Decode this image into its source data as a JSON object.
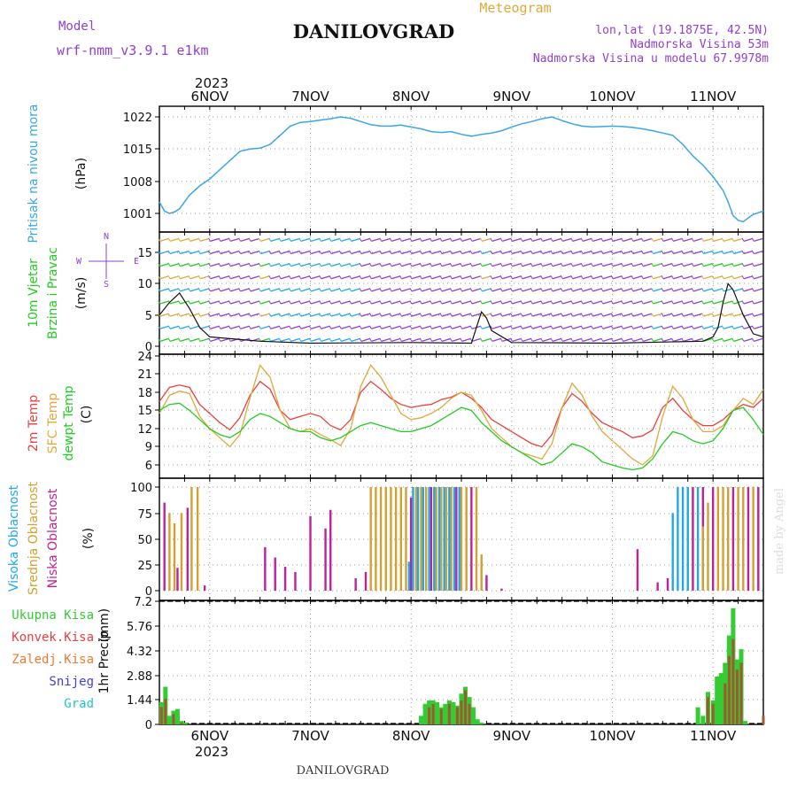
{
  "header": {
    "model_label": "Model",
    "model_value": "wrf-nmm_v3.9.1 e1km",
    "station": "DANILOVGRAD",
    "product": "Meteogram",
    "lonlat": "lon,lat (19.1875E, 42.5N)",
    "elevation": "Nadmorska Visina 53m",
    "model_elevation": "Nadmorska Visina u modelu 67.9978m",
    "footer": "DANILOVGRAD",
    "watermark": "made by Angel",
    "year": "2023"
  },
  "colors": {
    "pressure": "#3aa6e8",
    "temp2m": "#e8413c",
    "sfc": "#e0a83c",
    "dewpt": "#22cc22",
    "high_cloud": "#22a8e8",
    "mid_cloud": "#d4a030",
    "low_cloud": "#c0209a",
    "purple": "#9040d0",
    "precip_total": "#33cc33",
    "precip_conv": "#e84040",
    "precip_frz": "#f07830",
    "snow": "#4040e0",
    "grad": "#20c8c8"
  },
  "time_axis": {
    "day_labels": [
      "6NOV",
      "7NOV",
      "8NOV",
      "9NOV",
      "10NOV",
      "11NOV"
    ]
  },
  "wind_legend": [
    "N",
    "W",
    "E",
    "S"
  ],
  "chart_data": [
    {
      "id": "pressure",
      "type": "line",
      "axis_label": "Pritisak na nivou mora",
      "unit": "(hPa)",
      "yticks": [
        "1022",
        "1015",
        "1008",
        "1001"
      ],
      "ylim": [
        997,
        1024
      ],
      "x": [
        5.5,
        5.55,
        5.6,
        5.65,
        5.7,
        5.75,
        5.8,
        5.9,
        6.0,
        6.1,
        6.2,
        6.3,
        6.4,
        6.5,
        6.6,
        6.7,
        6.8,
        6.9,
        7.0,
        7.1,
        7.2,
        7.3,
        7.4,
        7.5,
        7.6,
        7.7,
        7.8,
        7.9,
        8.0,
        8.1,
        8.2,
        8.3,
        8.4,
        8.5,
        8.6,
        8.7,
        8.8,
        8.9,
        9.0,
        9.1,
        9.2,
        9.3,
        9.4,
        9.5,
        9.6,
        9.7,
        9.8,
        9.9,
        10.0,
        10.1,
        10.2,
        10.3,
        10.4,
        10.5,
        10.6,
        10.7,
        10.8,
        10.9,
        11.0,
        11.1,
        11.15,
        11.2,
        11.25,
        11.3,
        11.35,
        11.4,
        11.5
      ],
      "y": [
        1003.5,
        1001.5,
        1001.0,
        1001.3,
        1002.0,
        1003.5,
        1005.0,
        1007.0,
        1008.5,
        1010.5,
        1012.5,
        1014.5,
        1015.0,
        1015.2,
        1016.0,
        1018.0,
        1020.0,
        1020.8,
        1021.0,
        1021.3,
        1021.6,
        1022.0,
        1021.7,
        1021.0,
        1020.3,
        1020.0,
        1020.0,
        1020.2,
        1019.8,
        1019.4,
        1018.8,
        1018.6,
        1018.8,
        1018.2,
        1017.8,
        1018.2,
        1018.5,
        1019.0,
        1019.8,
        1020.5,
        1021.0,
        1021.6,
        1022.0,
        1021.2,
        1020.5,
        1020.0,
        1019.8,
        1019.9,
        1020.0,
        1019.9,
        1019.7,
        1019.4,
        1019.0,
        1018.5,
        1018.0,
        1016.0,
        1013.5,
        1011.5,
        1009.0,
        1006.0,
        1003.5,
        1000.5,
        999.5,
        999.2,
        1000.0,
        1000.8,
        1001.5
      ]
    },
    {
      "id": "wind",
      "type": "scatter",
      "axis_label_1": "10m Vjetar",
      "axis_label_2": "Brzina i Pravac",
      "unit": "(m/s)",
      "yticks": [
        "15",
        "10",
        "5",
        "0"
      ],
      "ylim": [
        -1,
        18
      ],
      "barb_rows_ms": [
        1,
        3,
        5,
        7,
        9,
        11,
        13,
        15,
        17
      ],
      "gust_line": {
        "x": [
          5.5,
          5.6,
          5.7,
          5.8,
          5.9,
          6.0,
          6.5,
          7.0,
          8.0,
          8.6,
          8.65,
          8.7,
          8.75,
          8.8,
          9.0,
          10.0,
          10.9,
          11.0,
          11.05,
          11.1,
          11.15,
          11.2,
          11.3,
          11.4,
          11.5
        ],
        "y": [
          5,
          7,
          8.5,
          6,
          3,
          1.5,
          0.8,
          0.5,
          0.6,
          0.5,
          3,
          5.5,
          4.5,
          2.5,
          0.6,
          0.5,
          0.8,
          1.5,
          3,
          7,
          10,
          9,
          5,
          2,
          1.5
        ]
      }
    },
    {
      "id": "temperature",
      "type": "line",
      "axis_label_1": "2m Temp",
      "axis_label_2": "SFC Temp",
      "axis_label_3": "dewpt Temp",
      "unit": "(C)",
      "yticks": [
        "24",
        "21",
        "18",
        "15",
        "12",
        "9",
        "6"
      ],
      "ylim": [
        4.5,
        24
      ],
      "x": [
        5.5,
        5.6,
        5.7,
        5.8,
        5.9,
        6.0,
        6.1,
        6.2,
        6.3,
        6.4,
        6.5,
        6.6,
        6.7,
        6.8,
        6.9,
        7.0,
        7.1,
        7.2,
        7.3,
        7.4,
        7.5,
        7.6,
        7.7,
        7.8,
        7.9,
        8.0,
        8.1,
        8.2,
        8.3,
        8.4,
        8.5,
        8.6,
        8.7,
        8.8,
        8.9,
        9.0,
        9.1,
        9.2,
        9.3,
        9.4,
        9.5,
        9.6,
        9.7,
        9.8,
        9.9,
        10.0,
        10.1,
        10.2,
        10.3,
        10.4,
        10.5,
        10.6,
        10.7,
        10.8,
        10.9,
        11.0,
        11.1,
        11.2,
        11.3,
        11.4,
        11.5
      ],
      "series": [
        {
          "name": "2m Temp",
          "color_key": "temp2m",
          "values": [
            16.5,
            18.8,
            19.2,
            18.8,
            16.0,
            14.5,
            13.0,
            11.8,
            13.8,
            17.5,
            19.8,
            18.5,
            15.0,
            13.5,
            14.0,
            14.5,
            14.0,
            12.5,
            11.8,
            13.5,
            18.0,
            19.8,
            18.5,
            17.0,
            16.0,
            15.5,
            15.8,
            16.0,
            16.8,
            17.2,
            18.0,
            17.0,
            15.5,
            13.5,
            12.5,
            11.5,
            10.5,
            9.5,
            9.0,
            11.0,
            15.5,
            17.8,
            16.5,
            14.5,
            13.0,
            12.2,
            11.5,
            10.5,
            10.8,
            11.8,
            15.5,
            17.0,
            15.0,
            13.5,
            12.5,
            12.5,
            13.5,
            15.0,
            16.0,
            15.5,
            17.0
          ]
        },
        {
          "name": "SFC Temp",
          "color_key": "sfc",
          "values": [
            14.5,
            17.5,
            18.2,
            17.8,
            14.0,
            12.0,
            10.5,
            9.0,
            11.0,
            17.0,
            22.5,
            20.5,
            15.0,
            12.0,
            11.5,
            12.0,
            11.0,
            10.2,
            9.2,
            12.0,
            19.0,
            22.5,
            20.5,
            17.5,
            14.5,
            13.5,
            13.8,
            14.5,
            15.5,
            17.0,
            18.0,
            17.5,
            15.0,
            12.0,
            10.5,
            9.0,
            8.0,
            7.5,
            7.0,
            9.5,
            15.5,
            19.5,
            17.5,
            14.0,
            11.5,
            10.0,
            8.5,
            7.0,
            6.0,
            7.5,
            14.0,
            19.0,
            17.0,
            13.5,
            11.5,
            11.5,
            12.5,
            15.0,
            17.0,
            16.0,
            18.5
          ]
        },
        {
          "name": "dewpt Temp",
          "color_key": "dewpt",
          "values": [
            15.0,
            16.0,
            16.2,
            15.0,
            13.5,
            12.0,
            11.0,
            10.5,
            11.5,
            13.5,
            14.5,
            14.0,
            13.0,
            12.0,
            11.5,
            11.5,
            10.5,
            10.0,
            10.5,
            11.5,
            12.5,
            13.0,
            12.5,
            12.0,
            11.5,
            11.5,
            12.0,
            12.5,
            13.5,
            14.5,
            15.5,
            15.0,
            13.0,
            11.5,
            10.0,
            9.0,
            8.0,
            7.0,
            6.0,
            6.5,
            8.0,
            9.5,
            9.0,
            8.0,
            6.5,
            6.0,
            5.5,
            5.2,
            5.5,
            7.0,
            9.5,
            11.5,
            11.0,
            10.0,
            9.5,
            10.0,
            12.0,
            15.0,
            15.5,
            13.5,
            11.0
          ]
        }
      ]
    },
    {
      "id": "clouds",
      "type": "bar",
      "axis_label_1": "Visoka Oblacnost",
      "axis_label_2": "Srednja Oblacnost",
      "axis_label_3": "Niska Oblacnost",
      "unit": "(%)",
      "yticks": [
        "100",
        "75",
        "50",
        "25",
        "0"
      ],
      "ylim": [
        0,
        100
      ],
      "series": [
        {
          "name": "Niska Oblacnost",
          "color_key": "low_cloud",
          "x": [
            5.55,
            5.68,
            5.78,
            5.95,
            6.55,
            6.65,
            6.75,
            6.85,
            7.0,
            7.15,
            7.2,
            7.45,
            7.55,
            8.0,
            8.2,
            8.45,
            8.6,
            8.75,
            8.9,
            10.25,
            10.45,
            10.55,
            10.8,
            10.9,
            11.0,
            11.2,
            11.35,
            11.45
          ],
          "values": [
            85,
            22,
            80,
            5,
            42,
            32,
            23,
            18,
            72,
            60,
            78,
            12,
            18,
            90,
            100,
            100,
            100,
            15,
            2,
            40,
            8,
            12,
            100,
            100,
            100,
            100,
            100,
            100
          ]
        },
        {
          "name": "Srednja Oblacnost",
          "color_key": "mid_cloud",
          "x": [
            5.6,
            5.65,
            5.72,
            5.82,
            5.88,
            7.6,
            7.65,
            7.7,
            7.75,
            7.8,
            7.85,
            7.9,
            7.95,
            8.05,
            8.1,
            8.15,
            8.25,
            8.3,
            8.35,
            8.4,
            8.5,
            8.55,
            8.65,
            8.7,
            10.9,
            10.95,
            11.05,
            11.1,
            11.15,
            11.25,
            11.3,
            11.4
          ],
          "values": [
            75,
            65,
            75,
            100,
            100,
            100,
            100,
            100,
            100,
            100,
            100,
            100,
            100,
            100,
            100,
            100,
            100,
            100,
            100,
            100,
            100,
            100,
            100,
            35,
            62,
            85,
            100,
            100,
            100,
            100,
            100,
            100
          ]
        },
        {
          "name": "Visoka Oblacnost",
          "color_key": "high_cloud",
          "x": [
            7.98,
            8.02,
            8.07,
            8.12,
            8.18,
            8.23,
            8.28,
            8.33,
            8.38,
            8.43,
            8.48,
            10.6,
            10.65,
            10.7,
            10.75,
            10.85
          ],
          "values": [
            28,
            100,
            100,
            100,
            100,
            100,
            100,
            100,
            100,
            100,
            100,
            75,
            100,
            100,
            100,
            100
          ]
        }
      ]
    },
    {
      "id": "precip",
      "type": "bar",
      "axis_label": "1hr Precip",
      "unit": "(mm)",
      "legend": [
        "Ukupna Kisa",
        "Konvek.Kisa",
        "Zaledj.Kisa",
        "Snijeg",
        "Grad"
      ],
      "yticks": [
        "7.2",
        "5.76",
        "4.32",
        "2.88",
        "1.44",
        "0"
      ],
      "ylim": [
        0,
        7.2
      ],
      "total": {
        "x": [
          5.52,
          5.56,
          5.6,
          5.64,
          5.68,
          5.72,
          5.76,
          8.1,
          8.14,
          8.18,
          8.22,
          8.26,
          8.3,
          8.34,
          8.38,
          8.42,
          8.46,
          8.5,
          8.54,
          8.58,
          8.62,
          8.66,
          8.7,
          10.85,
          10.9,
          10.95,
          11.0,
          11.04,
          11.08,
          11.12,
          11.16,
          11.2,
          11.24,
          11.28,
          11.32
        ],
        "values": [
          1.3,
          2.2,
          0.5,
          0.8,
          0.9,
          0.2,
          0.1,
          0.5,
          1.2,
          1.4,
          1.4,
          1.3,
          1.0,
          1.2,
          1.4,
          1.3,
          1.1,
          1.8,
          2.2,
          1.6,
          1.0,
          0.3,
          0.1,
          1.0,
          0.5,
          1.9,
          1.4,
          2.8,
          3.0,
          3.6,
          5.2,
          6.8,
          3.8,
          4.4,
          0.2
        ]
      },
      "convective": {
        "x": [
          5.52,
          5.56,
          5.64,
          5.72,
          8.18,
          8.22,
          8.3,
          8.38,
          8.46,
          8.5,
          8.54,
          8.58,
          10.95,
          11.0,
          11.12,
          11.16,
          11.2,
          11.24,
          11.28,
          11.5
        ],
        "values": [
          1.0,
          1.5,
          0.6,
          0.1,
          1.0,
          1.2,
          0.9,
          1.2,
          1.0,
          1.4,
          2.0,
          1.2,
          1.6,
          1.2,
          2.4,
          4.0,
          5.0,
          3.2,
          3.6,
          0.5
        ]
      }
    }
  ]
}
